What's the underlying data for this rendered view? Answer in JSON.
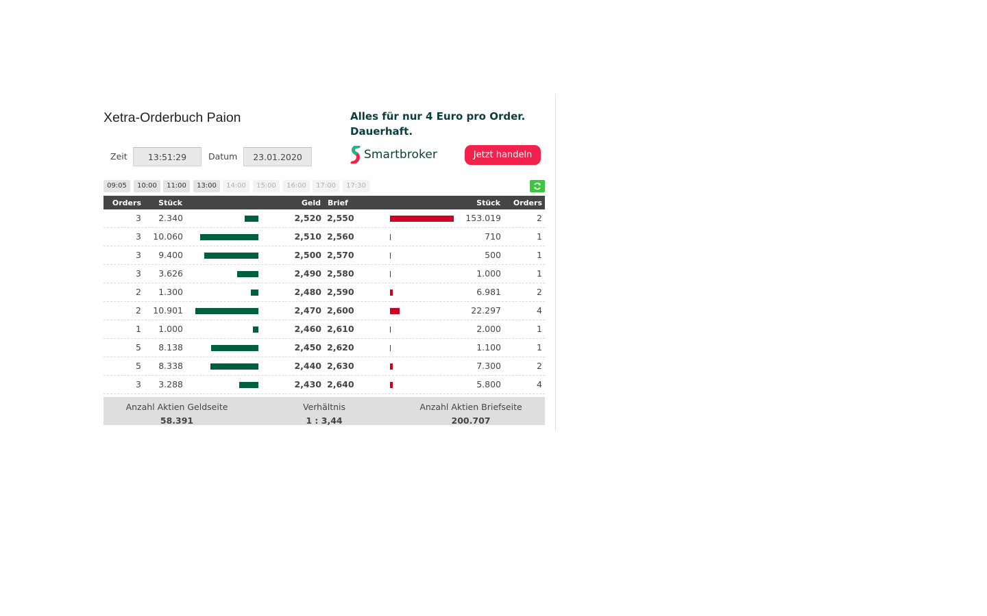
{
  "title": "Xetra-Orderbuch Paion",
  "time_label": "Zeit",
  "time_value": "13:51:29",
  "date_label": "Datum",
  "date_value": "23.01.2020",
  "ad": {
    "line1": "Alles für nur 4 Euro pro Order.",
    "line2": "Dauerhaft.",
    "brand": "Smartbroker",
    "button": "Jetzt handeln",
    "brand_color": "#0b3d3a",
    "button_color": "#f2224d"
  },
  "time_slots": [
    {
      "label": "09:05",
      "enabled": true
    },
    {
      "label": "10:00",
      "enabled": true
    },
    {
      "label": "11:00",
      "enabled": true
    },
    {
      "label": "13:00",
      "enabled": true
    },
    {
      "label": "14:00",
      "enabled": false
    },
    {
      "label": "15:00",
      "enabled": false
    },
    {
      "label": "16:00",
      "enabled": false
    },
    {
      "label": "17:00",
      "enabled": false
    },
    {
      "label": "17:30",
      "enabled": false
    }
  ],
  "refresh_icon": "refresh-icon",
  "headers": {
    "bid_orders": "Orders",
    "bid_qty": "Stück",
    "bid_price": "Geld",
    "ask_price": "Brief",
    "ask_qty": "Stück",
    "ask_orders": "Orders"
  },
  "bid_color": "#005f3f",
  "ask_color": "#cc0022",
  "rows": [
    {
      "bid_orders": "3",
      "bid_qty": "2.340",
      "bid_price": "2,520",
      "ask_price": "2,550",
      "ask_qty": "153.019",
      "ask_orders": "2",
      "bid_vol": 2340,
      "ask_vol": 153019
    },
    {
      "bid_orders": "3",
      "bid_qty": "10.060",
      "bid_price": "2,510",
      "ask_price": "2,560",
      "ask_qty": "710",
      "ask_orders": "1",
      "bid_vol": 10060,
      "ask_vol": 710
    },
    {
      "bid_orders": "3",
      "bid_qty": "9.400",
      "bid_price": "2,500",
      "ask_price": "2,570",
      "ask_qty": "500",
      "ask_orders": "1",
      "bid_vol": 9400,
      "ask_vol": 500
    },
    {
      "bid_orders": "3",
      "bid_qty": "3.626",
      "bid_price": "2,490",
      "ask_price": "2,580",
      "ask_qty": "1.000",
      "ask_orders": "1",
      "bid_vol": 3626,
      "ask_vol": 1000
    },
    {
      "bid_orders": "2",
      "bid_qty": "1.300",
      "bid_price": "2,480",
      "ask_price": "2,590",
      "ask_qty": "6.981",
      "ask_orders": "2",
      "bid_vol": 1300,
      "ask_vol": 6981
    },
    {
      "bid_orders": "2",
      "bid_qty": "10.901",
      "bid_price": "2,470",
      "ask_price": "2,600",
      "ask_qty": "22.297",
      "ask_orders": "4",
      "bid_vol": 10901,
      "ask_vol": 22297
    },
    {
      "bid_orders": "1",
      "bid_qty": "1.000",
      "bid_price": "2,460",
      "ask_price": "2,610",
      "ask_qty": "2.000",
      "ask_orders": "1",
      "bid_vol": 1000,
      "ask_vol": 2000
    },
    {
      "bid_orders": "5",
      "bid_qty": "8.138",
      "bid_price": "2,450",
      "ask_price": "2,620",
      "ask_qty": "1.100",
      "ask_orders": "1",
      "bid_vol": 8138,
      "ask_vol": 1100
    },
    {
      "bid_orders": "5",
      "bid_qty": "8.338",
      "bid_price": "2,440",
      "ask_price": "2,630",
      "ask_qty": "7.300",
      "ask_orders": "2",
      "bid_vol": 8338,
      "ask_vol": 7300
    },
    {
      "bid_orders": "3",
      "bid_qty": "3.288",
      "bid_price": "2,430",
      "ask_price": "2,640",
      "ask_qty": "5.800",
      "ask_orders": "4",
      "bid_vol": 3288,
      "ask_vol": 5800
    }
  ],
  "summary": {
    "bid_label": "Anzahl Aktien Geldseite",
    "bid_value": "58.391",
    "ratio_label": "Verhältnis",
    "ratio_value": "1 : 3,44",
    "ask_label": "Anzahl Aktien Briefseite",
    "ask_value": "200.707"
  }
}
